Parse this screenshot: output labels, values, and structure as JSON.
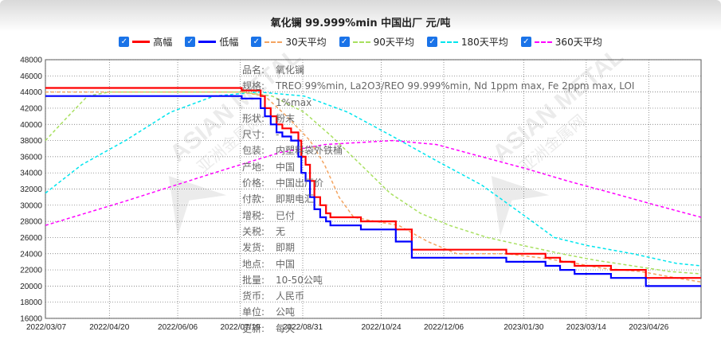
{
  "chart_data": {
    "type": "line",
    "title": "氧化镧 99.999%min 中国出厂 元/吨",
    "ylim": [
      16000,
      48000
    ],
    "yticks": [
      16000,
      18000,
      20000,
      22000,
      24000,
      26000,
      28000,
      30000,
      32000,
      34000,
      36000,
      38000,
      40000,
      42000,
      44000,
      46000,
      48000
    ],
    "xlim": [
      "2022-03-07",
      "2023-06-01"
    ],
    "xticks": [
      "2022/03/07",
      "2022/04/20",
      "2022/06/06",
      "2022/07/19",
      "2022/08/31",
      "2022/10/24",
      "2022/12/06",
      "2023/01/30",
      "2023/03/14",
      "2023/04/26"
    ],
    "grid": true,
    "legend_position": "top",
    "series": [
      {
        "name": "高幅",
        "color": "#ff0000",
        "style": "solid",
        "width": 2.2,
        "points": [
          [
            "2022-03-07",
            44500
          ],
          [
            "2022-07-20",
            44500
          ],
          [
            "2022-07-20",
            44200
          ],
          [
            "2022-08-02",
            44200
          ],
          [
            "2022-08-02",
            43500
          ],
          [
            "2022-08-05",
            43500
          ],
          [
            "2022-08-05",
            42000
          ],
          [
            "2022-08-09",
            42000
          ],
          [
            "2022-08-09",
            41000
          ],
          [
            "2022-08-13",
            41000
          ],
          [
            "2022-08-13",
            40000
          ],
          [
            "2022-08-17",
            40000
          ],
          [
            "2022-08-17",
            39500
          ],
          [
            "2022-08-23",
            39500
          ],
          [
            "2022-08-23",
            39000
          ],
          [
            "2022-08-28",
            39000
          ],
          [
            "2022-08-28",
            38000
          ],
          [
            "2022-08-30",
            38000
          ],
          [
            "2022-08-30",
            36000
          ],
          [
            "2022-09-02",
            36000
          ],
          [
            "2022-09-02",
            35000
          ],
          [
            "2022-09-05",
            35000
          ],
          [
            "2022-09-05",
            33000
          ],
          [
            "2022-09-08",
            33000
          ],
          [
            "2022-09-08",
            31000
          ],
          [
            "2022-09-12",
            31000
          ],
          [
            "2022-09-12",
            30000
          ],
          [
            "2022-09-16",
            30000
          ],
          [
            "2022-09-16",
            29000
          ],
          [
            "2022-09-19",
            29000
          ],
          [
            "2022-09-19",
            28500
          ],
          [
            "2022-10-10",
            28500
          ],
          [
            "2022-10-10",
            28000
          ],
          [
            "2022-11-03",
            28000
          ],
          [
            "2022-11-03",
            27000
          ],
          [
            "2022-11-14",
            27000
          ],
          [
            "2022-11-14",
            24500
          ],
          [
            "2023-01-18",
            24500
          ],
          [
            "2023-01-18",
            24000
          ],
          [
            "2023-02-14",
            24000
          ],
          [
            "2023-02-14",
            23500
          ],
          [
            "2023-02-24",
            23500
          ],
          [
            "2023-02-24",
            23000
          ],
          [
            "2023-03-06",
            23000
          ],
          [
            "2023-03-06",
            22500
          ],
          [
            "2023-03-31",
            22500
          ],
          [
            "2023-03-31",
            22000
          ],
          [
            "2023-04-24",
            22000
          ],
          [
            "2023-04-24",
            21000
          ],
          [
            "2023-06-01",
            21000
          ]
        ]
      },
      {
        "name": "低幅",
        "color": "#0000ff",
        "style": "solid",
        "width": 2.2,
        "points": [
          [
            "2022-03-07",
            43500
          ],
          [
            "2022-07-20",
            43500
          ],
          [
            "2022-07-20",
            43200
          ],
          [
            "2022-08-02",
            43200
          ],
          [
            "2022-08-02",
            42000
          ],
          [
            "2022-08-05",
            42000
          ],
          [
            "2022-08-05",
            41000
          ],
          [
            "2022-08-09",
            41000
          ],
          [
            "2022-08-09",
            40000
          ],
          [
            "2022-08-13",
            40000
          ],
          [
            "2022-08-13",
            39000
          ],
          [
            "2022-08-17",
            39000
          ],
          [
            "2022-08-17",
            38500
          ],
          [
            "2022-08-23",
            38500
          ],
          [
            "2022-08-23",
            38000
          ],
          [
            "2022-08-28",
            38000
          ],
          [
            "2022-08-28",
            36000
          ],
          [
            "2022-08-30",
            36000
          ],
          [
            "2022-08-30",
            34000
          ],
          [
            "2022-09-02",
            34000
          ],
          [
            "2022-09-02",
            33000
          ],
          [
            "2022-09-05",
            33000
          ],
          [
            "2022-09-05",
            31000
          ],
          [
            "2022-09-08",
            31000
          ],
          [
            "2022-09-08",
            29500
          ],
          [
            "2022-09-12",
            29500
          ],
          [
            "2022-09-12",
            28500
          ],
          [
            "2022-09-16",
            28500
          ],
          [
            "2022-09-16",
            28000
          ],
          [
            "2022-09-19",
            28000
          ],
          [
            "2022-09-19",
            27500
          ],
          [
            "2022-10-10",
            27500
          ],
          [
            "2022-10-10",
            27000
          ],
          [
            "2022-11-03",
            27000
          ],
          [
            "2022-11-03",
            25500
          ],
          [
            "2022-11-14",
            25500
          ],
          [
            "2022-11-14",
            23500
          ],
          [
            "2023-01-18",
            23500
          ],
          [
            "2023-01-18",
            23000
          ],
          [
            "2023-02-14",
            23000
          ],
          [
            "2023-02-14",
            22500
          ],
          [
            "2023-02-24",
            22500
          ],
          [
            "2023-02-24",
            22000
          ],
          [
            "2023-03-06",
            22000
          ],
          [
            "2023-03-06",
            21500
          ],
          [
            "2023-03-31",
            21500
          ],
          [
            "2023-03-31",
            21000
          ],
          [
            "2023-04-24",
            21000
          ],
          [
            "2023-04-24",
            20000
          ],
          [
            "2023-06-01",
            20000
          ]
        ]
      },
      {
        "name": "30天平均",
        "color": "#f4a460",
        "style": "dashed",
        "width": 1.5,
        "points": [
          [
            "2022-03-07",
            44000
          ],
          [
            "2022-07-20",
            44000
          ],
          [
            "2022-08-05",
            43500
          ],
          [
            "2022-08-20",
            41000
          ],
          [
            "2022-09-05",
            38000
          ],
          [
            "2022-09-15",
            35000
          ],
          [
            "2022-09-25",
            31000
          ],
          [
            "2022-10-05",
            28500
          ],
          [
            "2022-10-20",
            28000
          ],
          [
            "2022-11-05",
            27500
          ],
          [
            "2022-11-25",
            25500
          ],
          [
            "2022-12-15",
            24000
          ],
          [
            "2023-01-18",
            24000
          ],
          [
            "2023-02-10",
            23500
          ],
          [
            "2023-03-01",
            23000
          ],
          [
            "2023-03-25",
            22200
          ],
          [
            "2023-04-20",
            21800
          ],
          [
            "2023-05-15",
            21000
          ],
          [
            "2023-06-01",
            20500
          ]
        ]
      },
      {
        "name": "90天平均",
        "color": "#a8e05f",
        "style": "dashed",
        "width": 1.5,
        "points": [
          [
            "2022-03-07",
            38000
          ],
          [
            "2022-03-20",
            40500
          ],
          [
            "2022-04-05",
            43500
          ],
          [
            "2022-04-20",
            44000
          ],
          [
            "2022-07-20",
            44000
          ],
          [
            "2022-08-10",
            43500
          ],
          [
            "2022-09-01",
            41500
          ],
          [
            "2022-09-20",
            38500
          ],
          [
            "2022-10-10",
            35000
          ],
          [
            "2022-10-30",
            31500
          ],
          [
            "2022-11-20",
            29000
          ],
          [
            "2022-12-10",
            27500
          ],
          [
            "2023-01-05",
            26000
          ],
          [
            "2023-01-30",
            25000
          ],
          [
            "2023-02-25",
            24000
          ],
          [
            "2023-03-20",
            23200
          ],
          [
            "2023-04-15",
            22500
          ],
          [
            "2023-05-10",
            21800
          ],
          [
            "2023-06-01",
            21500
          ]
        ]
      },
      {
        "name": "180天平均",
        "color": "#00e5ee",
        "style": "dashed",
        "width": 1.5,
        "points": [
          [
            "2022-03-07",
            31500
          ],
          [
            "2022-04-01",
            35000
          ],
          [
            "2022-05-01",
            38000
          ],
          [
            "2022-06-01",
            41500
          ],
          [
            "2022-07-01",
            43500
          ],
          [
            "2022-08-01",
            44000
          ],
          [
            "2022-09-01",
            43500
          ],
          [
            "2022-10-01",
            41500
          ],
          [
            "2022-11-01",
            38500
          ],
          [
            "2022-12-01",
            35500
          ],
          [
            "2023-01-01",
            32500
          ],
          [
            "2023-02-01",
            28500
          ],
          [
            "2023-02-20",
            26000
          ],
          [
            "2023-03-15",
            25000
          ],
          [
            "2023-04-15",
            24000
          ],
          [
            "2023-05-15",
            22800
          ],
          [
            "2023-06-01",
            22500
          ]
        ]
      },
      {
        "name": "360天平均",
        "color": "#ff00ff",
        "style": "dashed",
        "width": 1.5,
        "points": [
          [
            "2022-03-07",
            27500
          ],
          [
            "2022-05-01",
            30500
          ],
          [
            "2022-07-01",
            34000
          ],
          [
            "2022-08-15",
            36500
          ],
          [
            "2022-09-15",
            37500
          ],
          [
            "2022-11-01",
            38000
          ],
          [
            "2022-12-01",
            37500
          ],
          [
            "2023-01-01",
            36000
          ],
          [
            "2023-02-01",
            34500
          ],
          [
            "2023-03-01",
            33000
          ],
          [
            "2023-04-01",
            31500
          ],
          [
            "2023-05-01",
            30000
          ],
          [
            "2023-06-01",
            28500
          ]
        ]
      }
    ]
  },
  "info_panel": [
    {
      "k": "品名:",
      "v": "氧化镧"
    },
    {
      "k": "规格:",
      "v": "TREO 99%min, La2O3/REO 99.999%min, Nd 1ppm max, Fe 2ppm max, LOI 1%max"
    },
    {
      "k": "形状:",
      "v": "粉末"
    },
    {
      "k": "尺寸:",
      "v": "-"
    },
    {
      "k": "包装:",
      "v": "内塑料袋外铁桶"
    },
    {
      "k": "产地:",
      "v": "中国"
    },
    {
      "k": "价格:",
      "v": "中国出厂价"
    },
    {
      "k": "付款:",
      "v": "即期电汇"
    },
    {
      "k": "增税:",
      "v": "已付"
    },
    {
      "k": "关税:",
      "v": "无"
    },
    {
      "k": "发货:",
      "v": "即期"
    },
    {
      "k": "地点:",
      "v": "中国"
    },
    {
      "k": "批量:",
      "v": "10-50公吨"
    },
    {
      "k": "货币:",
      "v": "人民币"
    },
    {
      "k": "单位:",
      "v": "公吨"
    },
    {
      "k": "更新:",
      "v": "每天"
    }
  ],
  "watermark": {
    "text_en": "ASIAN METAL",
    "text_cn": "亚洲金属网",
    "logo": "AM"
  }
}
